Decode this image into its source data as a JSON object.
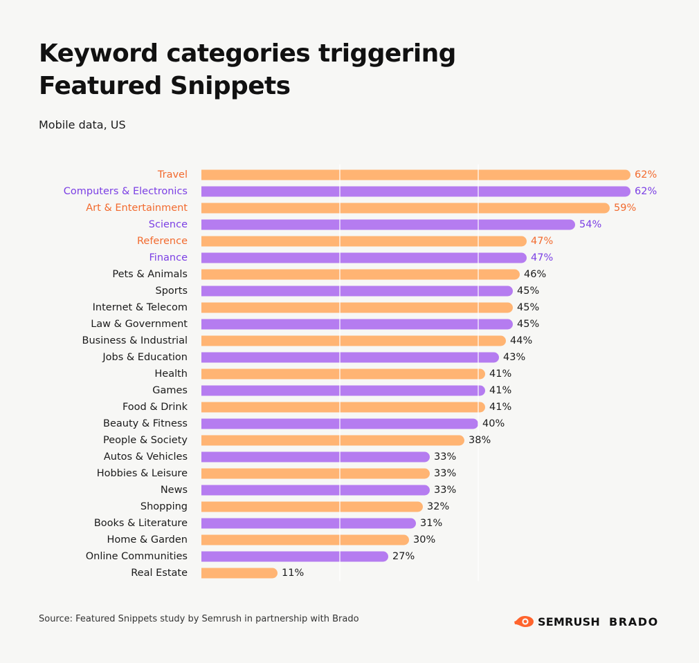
{
  "header": {
    "title": "Keyword categories triggering Featured Snippets",
    "subtitle": "Mobile data, US"
  },
  "footer": {
    "source": "Source: Featured Snippets study by Semrush in partnership with Brado",
    "logo_semrush": "SEMRUSH",
    "logo_brado": "BRADO"
  },
  "colors": {
    "bar_orange": "#ffb473",
    "bar_purple": "#b57cf0",
    "highlight_orange_text": "#f26a2e",
    "highlight_purple_text": "#7b3fe4",
    "default_text": "#1a1a1a",
    "gridline": "#ffffff",
    "semrush_brand": "#ff642d"
  },
  "chart_data": {
    "type": "bar",
    "orientation": "horizontal",
    "title": "Keyword categories triggering Featured Snippets",
    "subtitle": "Mobile data, US",
    "unit": "%",
    "xlim": [
      0,
      62
    ],
    "grid": "vertical white lines",
    "categories": [
      "Travel",
      "Computers & Electronics",
      "Art & Entertainment",
      "Science",
      "Reference",
      "Finance",
      "Pets & Animals",
      "Sports",
      "Internet & Telecom",
      "Law & Government",
      "Business & Industrial",
      "Jobs & Education",
      "Health",
      "Games",
      "Food & Drink",
      "Beauty & Fitness",
      "People & Society",
      "Autos & Vehicles",
      "Hobbies & Leisure",
      "News",
      "Shopping",
      "Books & Literature",
      "Home & Garden",
      "Online Communities",
      "Real Estate"
    ],
    "values": [
      62,
      62,
      59,
      54,
      47,
      47,
      46,
      45,
      45,
      45,
      44,
      43,
      41,
      41,
      41,
      40,
      38,
      33,
      33,
      33,
      32,
      31,
      30,
      27,
      11
    ],
    "bar_colors": [
      "orange",
      "purple",
      "orange",
      "purple",
      "orange",
      "purple",
      "orange",
      "purple",
      "orange",
      "purple",
      "orange",
      "purple",
      "orange",
      "purple",
      "orange",
      "purple",
      "orange",
      "purple",
      "orange",
      "purple",
      "orange",
      "purple",
      "orange",
      "purple",
      "orange"
    ],
    "highlighted": [
      true,
      true,
      true,
      true,
      true,
      true,
      false,
      false,
      false,
      false,
      false,
      false,
      false,
      false,
      false,
      false,
      false,
      false,
      false,
      false,
      false,
      false,
      false,
      false,
      false
    ],
    "value_labels": [
      "62%",
      "62%",
      "59%",
      "54%",
      "47%",
      "47%",
      "46%",
      "45%",
      "45%",
      "45%",
      "44%",
      "43%",
      "41%",
      "41%",
      "41%",
      "40%",
      "38%",
      "33%",
      "33%",
      "33%",
      "32%",
      "31%",
      "30%",
      "27%",
      "11%"
    ]
  }
}
